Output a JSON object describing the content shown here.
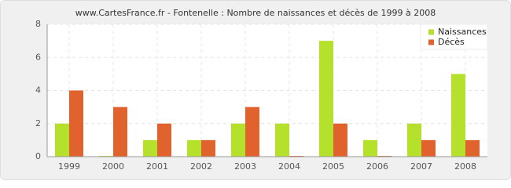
{
  "chart_data": {
    "type": "bar",
    "title": "www.CartesFrance.fr - Fontenelle : Nombre de naissances et décès de 1999 à 2008",
    "categories": [
      "1999",
      "2000",
      "2001",
      "2002",
      "2003",
      "2004",
      "2005",
      "2006",
      "2007",
      "2008"
    ],
    "series": [
      {
        "name": "Naissances",
        "color": "#b5e02b",
        "values": [
          2,
          0,
          1,
          1,
          2,
          2,
          7,
          1,
          2,
          5
        ]
      },
      {
        "name": "Décès",
        "color": "#e0622c",
        "values": [
          4,
          3,
          2,
          1,
          3,
          0,
          2,
          0,
          1,
          1
        ]
      }
    ],
    "ylim": [
      0,
      8
    ],
    "yticks": [
      0,
      2,
      4,
      6,
      8
    ],
    "grid": true,
    "legend": "top-right"
  }
}
